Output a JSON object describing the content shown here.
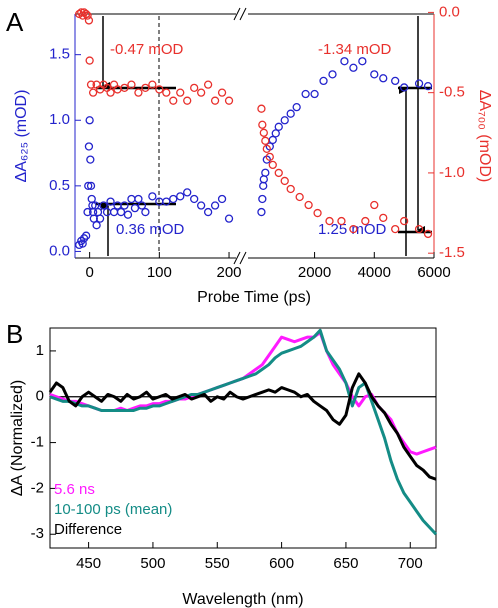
{
  "chart_data": [
    {
      "type": "scatter",
      "panel_label": "A",
      "xlabel": "Probe Time (ps)",
      "ylabel": "ΔA₆₂₅ (mOD)",
      "y2label": "ΔA₇₀₀ (mOD)",
      "xlim": [
        [
          -21,
          210
        ],
        [
          -230,
          6000
        ]
      ],
      "xticks": [
        [
          0,
          100,
          200
        ],
        [
          2000,
          4000,
          6000
        ]
      ],
      "ylim": [
        -0.05,
        1.81
      ],
      "yticks": [
        {
          "value": 0,
          "label": "0.0"
        },
        {
          "value": 0.5,
          "label": "0.5"
        },
        {
          "value": 1,
          "label": "1.0"
        },
        {
          "value": 1.5,
          "label": "1.5"
        }
      ],
      "y2lim": [
        -1.53,
        -0.01
      ],
      "y2ticks": [
        {
          "value": 0,
          "label": "0.0"
        },
        {
          "value": -0.5,
          "label": "-0.5"
        },
        {
          "value": -1,
          "label": "-1.0"
        },
        {
          "value": -1.5,
          "label": "-1.5"
        }
      ],
      "series": [
        {
          "color": "#2323cc",
          "x": [
            -15,
            -12,
            -10,
            -8,
            -5,
            -3,
            -2,
            -1,
            0,
            1,
            2,
            3,
            4,
            5,
            6,
            8,
            10,
            12,
            15,
            20,
            25,
            30,
            35,
            40,
            45,
            50,
            55,
            60,
            65,
            70,
            75,
            80,
            90,
            100,
            110,
            120,
            130,
            140,
            150,
            160,
            170,
            180,
            190,
            200,
            220,
            250,
            280,
            300,
            350,
            400,
            500,
            600,
            700,
            800,
            1000,
            1200,
            1400,
            1700,
            2000,
            2300,
            2600,
            3000,
            3300,
            3600,
            4000,
            4300,
            4700,
            5000,
            5500,
            5800
          ],
          "values": [
            0.05,
            0.08,
            0.06,
            0.1,
            0.12,
            0.3,
            0.5,
            0.8,
            1.0,
            0.7,
            0.5,
            0.4,
            0.35,
            0.3,
            0.25,
            0.35,
            0.2,
            0.3,
            0.25,
            0.35,
            0.3,
            0.38,
            0.3,
            0.35,
            0.3,
            0.35,
            0.28,
            0.4,
            0.33,
            0.4,
            0.35,
            0.3,
            0.42,
            0.38,
            0.38,
            0.4,
            0.42,
            0.45,
            0.4,
            0.35,
            0.3,
            0.35,
            0.4,
            0.25,
            0.3,
            0.4,
            0.5,
            0.55,
            0.6,
            0.7,
            0.8,
            0.85,
            0.9,
            0.95,
            1.0,
            1.05,
            1.1,
            1.2,
            1.2,
            1.3,
            1.35,
            1.45,
            1.4,
            1.45,
            1.35,
            1.32,
            1.3,
            1.25,
            1.28,
            1.26
          ]
        },
        {
          "color": "#e8302c",
          "axis": "y2",
          "x": [
            -15,
            -12,
            -10,
            -8,
            -5,
            -3,
            -1,
            0,
            2,
            5,
            10,
            15,
            20,
            25,
            30,
            35,
            40,
            50,
            60,
            70,
            80,
            90,
            100,
            110,
            120,
            130,
            140,
            150,
            160,
            170,
            180,
            190,
            200,
            220,
            250,
            300,
            350,
            400,
            500,
            600,
            800,
            1000,
            1200,
            1500,
            1800,
            2100,
            2500,
            2900,
            3300,
            3700,
            4000,
            4300,
            4700,
            5000,
            5500,
            5800
          ],
          "values": [
            -0.01,
            0,
            -0.02,
            0,
            -0.01,
            -0.02,
            -0.05,
            -0.3,
            -0.45,
            -0.5,
            -0.45,
            -0.48,
            -0.45,
            -0.47,
            -0.5,
            -0.45,
            -0.48,
            -0.47,
            -0.45,
            -0.5,
            -0.47,
            -0.45,
            -0.48,
            -0.5,
            -0.55,
            -0.5,
            -0.55,
            -0.47,
            -0.5,
            -0.45,
            -0.55,
            -0.5,
            -0.55,
            -0.6,
            -0.7,
            -0.75,
            -0.8,
            -0.85,
            -0.9,
            -0.95,
            -1.0,
            -1.05,
            -1.1,
            -1.15,
            -1.2,
            -1.25,
            -1.3,
            -1.3,
            -1.35,
            -1.3,
            -1.2,
            -1.28,
            -1.35,
            -1.3,
            -1.35,
            -1.38
          ]
        }
      ],
      "annotations": [
        "-0.47 mOD",
        "0.36 mOD",
        "-1.34 mOD",
        "1.25 mOD"
      ]
    },
    {
      "type": "line",
      "panel_label": "B",
      "xlabel": "Wavelength (nm)",
      "ylabel": "ΔA (Normalized)",
      "x": [
        420,
        425,
        430,
        435,
        440,
        445,
        450,
        455,
        460,
        465,
        470,
        475,
        480,
        485,
        490,
        495,
        500,
        505,
        510,
        515,
        520,
        525,
        530,
        535,
        540,
        545,
        550,
        555,
        560,
        565,
        570,
        575,
        580,
        585,
        590,
        595,
        600,
        605,
        610,
        615,
        620,
        625,
        630,
        635,
        640,
        645,
        650,
        655,
        660,
        665,
        670,
        675,
        680,
        685,
        690,
        695,
        700,
        705,
        710,
        715,
        720
      ],
      "xlim": [
        420,
        720
      ],
      "xticks": [
        450,
        500,
        550,
        600,
        650,
        700
      ],
      "ylim": [
        -3.3,
        1.5
      ],
      "yticks": [
        1,
        0,
        -1,
        -2,
        -3
      ],
      "zero_line": true,
      "series": [
        {
          "name": "5.6 ns",
          "color": "#ff1aff",
          "values": [
            0.05,
            0.0,
            -0.05,
            -0.1,
            -0.1,
            -0.15,
            -0.2,
            -0.25,
            -0.3,
            -0.3,
            -0.3,
            -0.25,
            -0.3,
            -0.25,
            -0.2,
            -0.2,
            -0.15,
            -0.15,
            -0.1,
            -0.1,
            -0.05,
            -0.05,
            0.0,
            0.05,
            0.1,
            0.15,
            0.2,
            0.25,
            0.3,
            0.35,
            0.4,
            0.5,
            0.6,
            0.7,
            0.9,
            1.1,
            1.3,
            1.25,
            1.2,
            1.25,
            1.3,
            1.3,
            1.4,
            1.0,
            0.7,
            0.5,
            0.3,
            0.0,
            -0.2,
            0.0,
            0.05,
            -0.2,
            -0.35,
            -0.5,
            -0.8,
            -1.0,
            -1.2,
            -1.25,
            -1.2,
            -1.15,
            -1.1
          ]
        },
        {
          "name": "10-100 ps (mean)",
          "color": "#148c86",
          "values": [
            0.0,
            -0.05,
            -0.1,
            -0.1,
            -0.15,
            -0.2,
            -0.2,
            -0.25,
            -0.3,
            -0.3,
            -0.3,
            -0.3,
            -0.3,
            -0.3,
            -0.25,
            -0.25,
            -0.2,
            -0.2,
            -0.15,
            -0.1,
            -0.05,
            0.0,
            0.05,
            0.05,
            0.1,
            0.15,
            0.2,
            0.25,
            0.3,
            0.35,
            0.4,
            0.45,
            0.5,
            0.6,
            0.7,
            0.85,
            0.95,
            1.0,
            1.05,
            1.1,
            1.2,
            1.3,
            1.45,
            1.0,
            0.8,
            0.6,
            0.3,
            -0.2,
            0.2,
            0.3,
            -0.1,
            -0.5,
            -0.9,
            -1.4,
            -1.8,
            -2.1,
            -2.3,
            -2.5,
            -2.7,
            -2.85,
            -3.0
          ]
        },
        {
          "name": "Difference",
          "color": "#000000",
          "values": [
            0.1,
            0.3,
            0.2,
            -0.1,
            -0.2,
            0.0,
            0.1,
            0.0,
            -0.1,
            0.05,
            0.0,
            -0.1,
            0.05,
            -0.05,
            0.0,
            0.1,
            -0.05,
            0.0,
            0.05,
            -0.05,
            0.0,
            0.05,
            -0.05,
            0.0,
            0.05,
            -0.1,
            0.0,
            -0.05,
            0.1,
            0.0,
            -0.05,
            0.0,
            0.05,
            0.1,
            0.15,
            0.1,
            0.2,
            0.15,
            0.1,
            0.0,
            0.05,
            -0.1,
            -0.2,
            -0.3,
            -0.5,
            -0.6,
            -0.4,
            0.2,
            0.5,
            0.3,
            0.0,
            -0.2,
            -0.35,
            -0.6,
            -0.8,
            -1.1,
            -1.3,
            -1.5,
            -1.6,
            -1.75,
            -1.8
          ]
        }
      ]
    }
  ]
}
